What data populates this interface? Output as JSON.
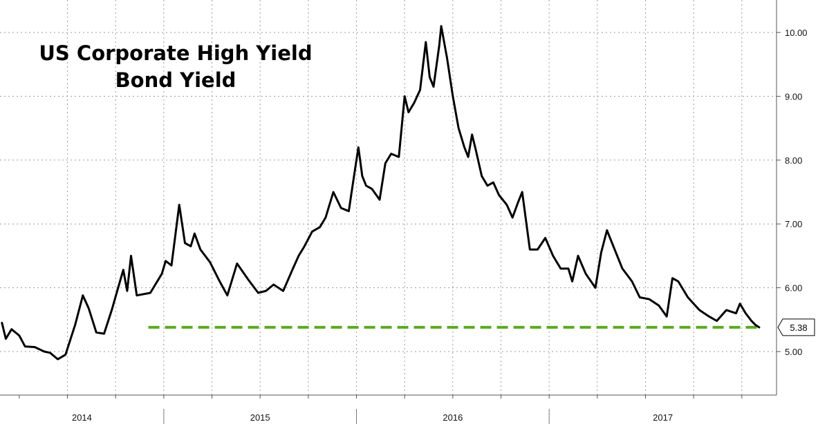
{
  "chart_data": {
    "type": "line",
    "title": "US Corporate High Yield Bond Yield",
    "title_lines": [
      "US Corporate High Yield",
      "Bond Yield"
    ],
    "xlabel": "",
    "ylabel": "",
    "ylim": [
      4.3,
      10.6
    ],
    "yticks": [
      "5.00",
      "6.00",
      "7.00",
      "8.00",
      "9.00",
      "10.00"
    ],
    "year_labels": [
      "2014",
      "2015",
      "2016",
      "2017"
    ],
    "grid": true,
    "y_axis_side": "right",
    "last_value_label": "5.38",
    "colors": {
      "line": "#000000",
      "reference_line": "#5aaa1e",
      "grid": "#9a9a9a"
    },
    "reference_line": {
      "value": 5.38,
      "start_x": 2014.42,
      "style": "dashed"
    },
    "series": [
      {
        "values": [
          [
            2013.66,
            5.45
          ],
          [
            2013.68,
            5.2
          ],
          [
            2013.71,
            5.35
          ],
          [
            2013.75,
            5.25
          ],
          [
            2013.78,
            5.08
          ],
          [
            2013.83,
            5.07
          ],
          [
            2013.88,
            5.0
          ],
          [
            2013.91,
            4.98
          ],
          [
            2013.95,
            4.88
          ],
          [
            2013.99,
            4.95
          ],
          [
            2014.04,
            5.42
          ],
          [
            2014.08,
            5.88
          ],
          [
            2014.11,
            5.68
          ],
          [
            2014.15,
            5.3
          ],
          [
            2014.19,
            5.28
          ],
          [
            2014.23,
            5.65
          ],
          [
            2014.29,
            6.28
          ],
          [
            2014.31,
            5.95
          ],
          [
            2014.33,
            6.5
          ],
          [
            2014.36,
            5.88
          ],
          [
            2014.43,
            5.92
          ],
          [
            2014.49,
            6.22
          ],
          [
            2014.51,
            6.42
          ],
          [
            2014.54,
            6.35
          ],
          [
            2014.58,
            7.3
          ],
          [
            2014.61,
            6.7
          ],
          [
            2014.64,
            6.65
          ],
          [
            2014.66,
            6.85
          ],
          [
            2014.69,
            6.6
          ],
          [
            2014.74,
            6.4
          ],
          [
            2014.79,
            6.1
          ],
          [
            2014.83,
            5.88
          ],
          [
            2014.88,
            6.38
          ],
          [
            2014.94,
            6.12
          ],
          [
            2014.99,
            5.92
          ],
          [
            2015.03,
            5.95
          ],
          [
            2015.07,
            6.05
          ],
          [
            2015.12,
            5.95
          ],
          [
            2015.17,
            6.3
          ],
          [
            2015.2,
            6.5
          ],
          [
            2015.23,
            6.65
          ],
          [
            2015.27,
            6.88
          ],
          [
            2015.31,
            6.95
          ],
          [
            2015.34,
            7.1
          ],
          [
            2015.38,
            7.5
          ],
          [
            2015.42,
            7.25
          ],
          [
            2015.46,
            7.2
          ],
          [
            2015.48,
            7.6
          ],
          [
            2015.51,
            8.2
          ],
          [
            2015.53,
            7.75
          ],
          [
            2015.55,
            7.6
          ],
          [
            2015.58,
            7.55
          ],
          [
            2015.62,
            7.38
          ],
          [
            2015.65,
            7.95
          ],
          [
            2015.68,
            8.1
          ],
          [
            2015.72,
            8.05
          ],
          [
            2015.75,
            9.0
          ],
          [
            2015.77,
            8.75
          ],
          [
            2015.8,
            8.9
          ],
          [
            2015.83,
            9.1
          ],
          [
            2015.86,
            9.85
          ],
          [
            2015.88,
            9.3
          ],
          [
            2015.9,
            9.15
          ],
          [
            2015.93,
            9.8
          ],
          [
            2015.94,
            10.1
          ],
          [
            2015.97,
            9.6
          ],
          [
            2016.0,
            9.0
          ],
          [
            2016.03,
            8.5
          ],
          [
            2016.06,
            8.2
          ],
          [
            2016.08,
            8.05
          ],
          [
            2016.1,
            8.4
          ],
          [
            2016.12,
            8.15
          ],
          [
            2016.15,
            7.75
          ],
          [
            2016.18,
            7.6
          ],
          [
            2016.21,
            7.65
          ],
          [
            2016.24,
            7.45
          ],
          [
            2016.28,
            7.3
          ],
          [
            2016.31,
            7.1
          ],
          [
            2016.34,
            7.35
          ],
          [
            2016.36,
            7.5
          ],
          [
            2016.4,
            6.6
          ],
          [
            2016.44,
            6.6
          ],
          [
            2016.48,
            6.78
          ],
          [
            2016.52,
            6.5
          ],
          [
            2016.56,
            6.3
          ],
          [
            2016.6,
            6.3
          ],
          [
            2016.62,
            6.1
          ],
          [
            2016.65,
            6.5
          ],
          [
            2016.69,
            6.22
          ],
          [
            2016.74,
            6.0
          ],
          [
            2016.77,
            6.55
          ],
          [
            2016.8,
            6.9
          ],
          [
            2016.84,
            6.6
          ],
          [
            2016.88,
            6.3
          ],
          [
            2016.93,
            6.1
          ],
          [
            2016.97,
            5.85
          ],
          [
            2017.02,
            5.82
          ],
          [
            2017.07,
            5.72
          ],
          [
            2017.11,
            5.55
          ],
          [
            2017.14,
            6.15
          ],
          [
            2017.17,
            6.1
          ],
          [
            2017.22,
            5.85
          ],
          [
            2017.28,
            5.65
          ],
          [
            2017.33,
            5.55
          ],
          [
            2017.37,
            5.48
          ],
          [
            2017.42,
            5.65
          ],
          [
            2017.47,
            5.6
          ],
          [
            2017.49,
            5.75
          ],
          [
            2017.52,
            5.6
          ],
          [
            2017.55,
            5.48
          ],
          [
            2017.57,
            5.42
          ],
          [
            2017.59,
            5.38
          ]
        ]
      }
    ]
  }
}
